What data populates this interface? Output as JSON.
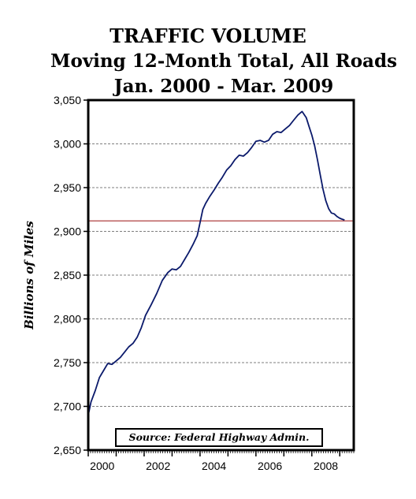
{
  "chart_data": {
    "type": "line",
    "title": "TRAFFIC VOLUME",
    "subtitle_lines": [
      "Moving 12-Month Total, All Roads",
      "Jan. 2000 - Mar. 2009"
    ],
    "ylabel": "Billions of Miles",
    "xlabel": "",
    "source": "Source: Federal Highway Admin.",
    "xlim": [
      2000,
      2009.5
    ],
    "ylim": [
      2650,
      3050
    ],
    "y_ticks": [
      2650,
      2700,
      2750,
      2800,
      2850,
      2900,
      2950,
      3000,
      3050
    ],
    "y_tick_labels": [
      "2,650",
      "2,700",
      "2,750",
      "2,800",
      "2,850",
      "2,900",
      "2,950",
      "3,000",
      "3,050"
    ],
    "x_tick_labels": [
      "2000",
      "2002",
      "2004",
      "2006",
      "2008"
    ],
    "x_tick_positions": [
      2000.5,
      2002.5,
      2004.5,
      2006.5,
      2008.5
    ],
    "grid": "horizontal dashed",
    "reference_line": {
      "y": 2912,
      "color": "#a52a2a"
    },
    "series": [
      {
        "color": "#0b1a6b",
        "x": [
          2000.0,
          2000.1,
          2000.25,
          2000.4,
          2000.55,
          2000.7,
          2000.85,
          2001.0,
          2001.15,
          2001.3,
          2001.45,
          2001.6,
          2001.75,
          2001.9,
          2002.05,
          2002.25,
          2002.45,
          2002.65,
          2002.85,
          2003.0,
          2003.15,
          2003.3,
          2003.45,
          2003.6,
          2003.75,
          2003.9,
          2004.0,
          2004.1,
          2004.2,
          2004.35,
          2004.5,
          2004.65,
          2004.8,
          2004.95,
          2005.1,
          2005.25,
          2005.4,
          2005.55,
          2005.7,
          2005.85,
          2006.0,
          2006.15,
          2006.3,
          2006.45,
          2006.6,
          2006.75,
          2006.9,
          2007.05,
          2007.2,
          2007.35,
          2007.5,
          2007.65,
          2007.8,
          2007.9,
          2008.0,
          2008.1,
          2008.2,
          2008.3,
          2008.4,
          2008.5,
          2008.6,
          2008.7,
          2008.8,
          2008.9,
          2009.0,
          2009.08,
          2009.17
        ],
        "values": [
          2690,
          2705,
          2718,
          2733,
          2741,
          2749,
          2748,
          2752,
          2756,
          2762,
          2768,
          2772,
          2779,
          2790,
          2804,
          2816,
          2829,
          2844,
          2853,
          2857,
          2856,
          2860,
          2868,
          2876,
          2885,
          2895,
          2910,
          2925,
          2932,
          2940,
          2947,
          2955,
          2962,
          2970,
          2975,
          2982,
          2987,
          2986,
          2990,
          2996,
          3003,
          3004,
          3002,
          3004,
          3011,
          3014,
          3013,
          3017,
          3021,
          3027,
          3033,
          3037,
          3030,
          3020,
          3010,
          2998,
          2982,
          2965,
          2948,
          2935,
          2926,
          2921,
          2920,
          2917,
          2915,
          2914,
          2913
        ]
      }
    ]
  }
}
